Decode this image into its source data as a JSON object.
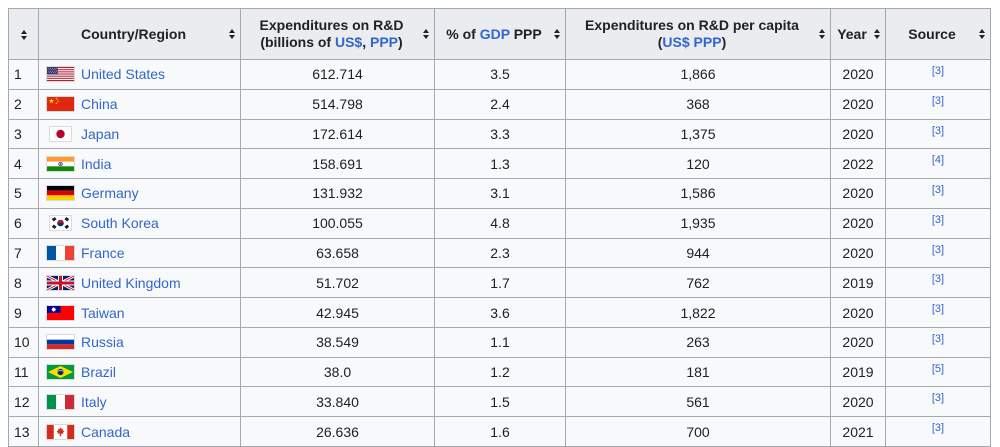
{
  "colors": {
    "header_background": "#eaecf0",
    "row_background": "#f8f9fa",
    "border": "#a2a9b1",
    "link_blue": "#3366cc",
    "text": "#202122"
  },
  "table": {
    "headers": {
      "rank_label": "",
      "country_label": "Country/Region",
      "expenditures_line1": "Expenditures on R&D",
      "expenditures_line2_pre": "(billions of ",
      "expenditures_link_usd": "US$",
      "expenditures_line2_sep": ", ",
      "expenditures_link_ppp": "PPP",
      "expenditures_line2_post": ")",
      "gdp_pre": "% of ",
      "gdp_link": "GDP",
      "gdp_post": " PPP",
      "per_capita_line1": "Expenditures on R&D per capita",
      "per_capita_line2_pre": "(",
      "per_capita_link": "US$ PPP",
      "per_capita_line2_post": ")",
      "year_label": "Year",
      "source_label": "Source"
    },
    "rows": [
      {
        "rank": "1",
        "flag": "flag-united-states-icon",
        "country": "United States",
        "expenditures": "612.714",
        "pct_of_gdp": "3.5",
        "per_capita": "1,866",
        "year": "2020",
        "source": "[3]"
      },
      {
        "rank": "2",
        "flag": "flag-china-icon",
        "country": "China",
        "expenditures": "514.798",
        "pct_of_gdp": "2.4",
        "per_capita": "368",
        "year": "2020",
        "source": "[3]"
      },
      {
        "rank": "3",
        "flag": "flag-japan-icon",
        "country": "Japan",
        "expenditures": "172.614",
        "pct_of_gdp": "3.3",
        "per_capita": "1,375",
        "year": "2020",
        "source": "[3]"
      },
      {
        "rank": "4",
        "flag": "flag-india-icon",
        "country": "India",
        "expenditures": "158.691",
        "pct_of_gdp": "1.3",
        "per_capita": "120",
        "year": "2022",
        "source": "[4]"
      },
      {
        "rank": "5",
        "flag": "flag-germany-icon",
        "country": "Germany",
        "expenditures": "131.932",
        "pct_of_gdp": "3.1",
        "per_capita": "1,586",
        "year": "2020",
        "source": "[3]"
      },
      {
        "rank": "6",
        "flag": "flag-south-korea-icon",
        "country": "South Korea",
        "expenditures": "100.055",
        "pct_of_gdp": "4.8",
        "per_capita": "1,935",
        "year": "2020",
        "source": "[3]"
      },
      {
        "rank": "7",
        "flag": "flag-france-icon",
        "country": "France",
        "expenditures": "63.658",
        "pct_of_gdp": "2.3",
        "per_capita": "944",
        "year": "2020",
        "source": "[3]"
      },
      {
        "rank": "8",
        "flag": "flag-united-kingdom-icon",
        "country": "United Kingdom",
        "expenditures": "51.702",
        "pct_of_gdp": "1.7",
        "per_capita": "762",
        "year": "2019",
        "source": "[3]"
      },
      {
        "rank": "9",
        "flag": "flag-taiwan-icon",
        "country": "Taiwan",
        "expenditures": "42.945",
        "pct_of_gdp": "3.6",
        "per_capita": "1,822",
        "year": "2020",
        "source": "[3]"
      },
      {
        "rank": "10",
        "flag": "flag-russia-icon",
        "country": "Russia",
        "expenditures": "38.549",
        "pct_of_gdp": "1.1",
        "per_capita": "263",
        "year": "2020",
        "source": "[3]"
      },
      {
        "rank": "11",
        "flag": "flag-brazil-icon",
        "country": "Brazil",
        "expenditures": "38.0",
        "pct_of_gdp": "1.2",
        "per_capita": "181",
        "year": "2019",
        "source": "[5]"
      },
      {
        "rank": "12",
        "flag": "flag-italy-icon",
        "country": "Italy",
        "expenditures": "33.840",
        "pct_of_gdp": "1.5",
        "per_capita": "561",
        "year": "2020",
        "source": "[3]"
      },
      {
        "rank": "13",
        "flag": "flag-canada-icon",
        "country": "Canada",
        "expenditures": "26.636",
        "pct_of_gdp": "1.6",
        "per_capita": "700",
        "year": "2021",
        "source": "[3]"
      }
    ]
  }
}
